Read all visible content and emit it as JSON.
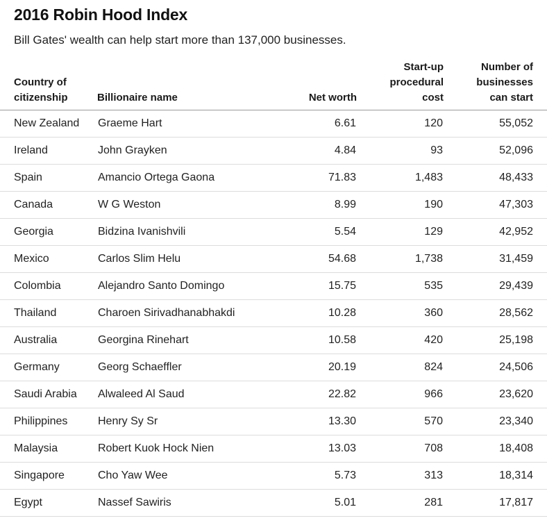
{
  "header": {
    "title": "2016 Robin Hood Index",
    "subtitle": "Bill Gates' wealth can help start more than 137,000 businesses."
  },
  "chart_data": {
    "type": "table",
    "title": "2016 Robin Hood Index",
    "subtitle": "Bill Gates' wealth can help start more than 137,000 businesses.",
    "columns": [
      {
        "key": "country",
        "lines": [
          "Country of",
          "citizenship"
        ],
        "align": "left"
      },
      {
        "key": "name",
        "lines": [
          "Billionaire name"
        ],
        "align": "left"
      },
      {
        "key": "net_worth",
        "lines": [
          "Net worth"
        ],
        "align": "right"
      },
      {
        "key": "cost",
        "lines": [
          "Start-up",
          "procedural",
          "cost"
        ],
        "align": "right"
      },
      {
        "key": "businesses",
        "lines": [
          "Number of",
          "businesses",
          "can start"
        ],
        "align": "right"
      }
    ],
    "rows": [
      {
        "country": "New Zealand",
        "name": "Graeme Hart",
        "net_worth": "6.61",
        "cost": "120",
        "businesses": "55,052"
      },
      {
        "country": "Ireland",
        "name": "John Grayken",
        "net_worth": "4.84",
        "cost": "93",
        "businesses": "52,096"
      },
      {
        "country": "Spain",
        "name": "Amancio Ortega Gaona",
        "net_worth": "71.83",
        "cost": "1,483",
        "businesses": "48,433"
      },
      {
        "country": "Canada",
        "name": "W G Weston",
        "net_worth": "8.99",
        "cost": "190",
        "businesses": "47,303"
      },
      {
        "country": "Georgia",
        "name": "Bidzina Ivanishvili",
        "net_worth": "5.54",
        "cost": "129",
        "businesses": "42,952"
      },
      {
        "country": "Mexico",
        "name": "Carlos Slim Helu",
        "net_worth": "54.68",
        "cost": "1,738",
        "businesses": "31,459"
      },
      {
        "country": "Colombia",
        "name": "Alejandro Santo Domingo",
        "net_worth": "15.75",
        "cost": "535",
        "businesses": "29,439"
      },
      {
        "country": "Thailand",
        "name": "Charoen Sirivadhanabhakdi",
        "net_worth": "10.28",
        "cost": "360",
        "businesses": "28,562"
      },
      {
        "country": "Australia",
        "name": "Georgina Rinehart",
        "net_worth": "10.58",
        "cost": "420",
        "businesses": "25,198"
      },
      {
        "country": "Germany",
        "name": "Georg Schaeffler",
        "net_worth": "20.19",
        "cost": "824",
        "businesses": "24,506"
      },
      {
        "country": "Saudi Arabia",
        "name": "Alwaleed Al Saud",
        "net_worth": "22.82",
        "cost": "966",
        "businesses": "23,620"
      },
      {
        "country": "Philippines",
        "name": "Henry Sy Sr",
        "net_worth": "13.30",
        "cost": "570",
        "businesses": "23,340"
      },
      {
        "country": "Malaysia",
        "name": "Robert Kuok Hock Nien",
        "net_worth": "13.03",
        "cost": "708",
        "businesses": "18,408"
      },
      {
        "country": "Singapore",
        "name": "Cho Yaw Wee",
        "net_worth": "5.73",
        "cost": "313",
        "businesses": "18,314"
      },
      {
        "country": "Egypt",
        "name": "Nassef Sawiris",
        "net_worth": "5.01",
        "cost": "281",
        "businesses": "17,817"
      }
    ]
  }
}
